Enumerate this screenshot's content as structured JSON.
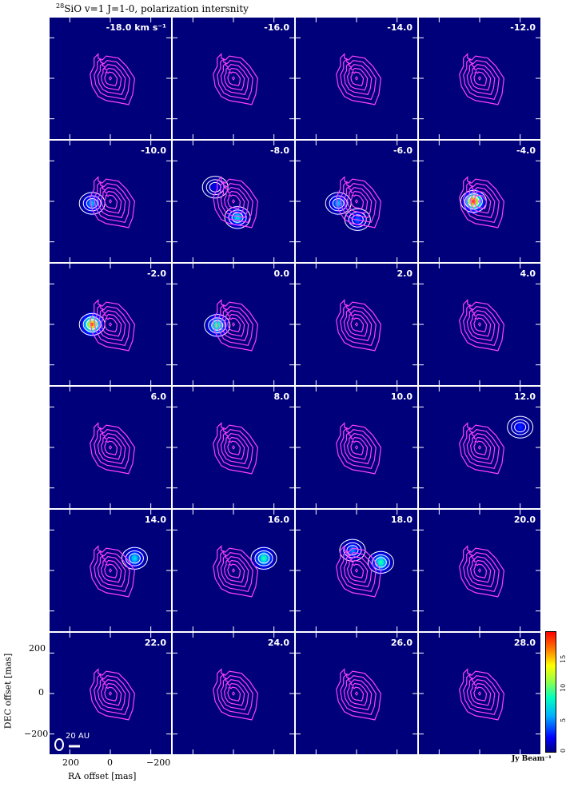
{
  "title_prefix": "28",
  "title_text": "SiO v=1 J=1-0, polarization intersnity",
  "ylabel": "DEC offset [mas]",
  "xlabel": "RA offset [mas]",
  "y_ticks": [
    "200",
    "0",
    "−200"
  ],
  "x_ticks": [
    "200",
    "0",
    "−200"
  ],
  "scale_bar_label": "20 AU",
  "colorbar": {
    "label": "Jy Beam⁻¹",
    "ticks": [
      "0",
      "5",
      "10",
      "15"
    ],
    "range": [
      0,
      19
    ]
  },
  "chart_data": {
    "type": "heatmap",
    "title": "28SiO v=1 J=1-0, polarization intersnity",
    "xlabel": "RA offset [mas]",
    "ylabel": "DEC offset [mas]",
    "xlim": [
      300,
      -300
    ],
    "ylim": [
      -300,
      300
    ],
    "velocity_unit": "km s⁻¹",
    "velocities": [
      "-18.0",
      "-16.0",
      "-14.0",
      "-12.0",
      "-10.0",
      "-8.0",
      "-6.0",
      "-4.0",
      "-2.0",
      "0.0",
      "2.0",
      "4.0",
      "6.0",
      "8.0",
      "10.0",
      "12.0",
      "14.0",
      "16.0",
      "18.0",
      "20.0",
      "22.0",
      "24.0",
      "26.0",
      "28.0"
    ],
    "first_label_suffix": " km s⁻¹",
    "colorbar_range": [
      0,
      19
    ],
    "emission_spots": {
      "-10.0": [
        {
          "x": 90,
          "y": -10,
          "peak": 6
        }
      ],
      "-8.0": [
        {
          "x": 90,
          "y": 70,
          "peak": 2
        },
        {
          "x": -20,
          "y": -80,
          "peak": 7
        }
      ],
      "-6.0": [
        {
          "x": 90,
          "y": -10,
          "peak": 6
        },
        {
          "x": -5,
          "y": -90,
          "peak": 4
        }
      ],
      "-4.0": [
        {
          "x": 30,
          "y": 0,
          "peak": 18
        }
      ],
      "-2.0": [
        {
          "x": 90,
          "y": 0,
          "peak": 17
        }
      ],
      "0.0": [
        {
          "x": 80,
          "y": -5,
          "peak": 10
        }
      ],
      "12.0": [
        {
          "x": -200,
          "y": 100,
          "peak": 3
        }
      ],
      "14.0": [
        {
          "x": -120,
          "y": 60,
          "peak": 7
        }
      ],
      "16.0": [
        {
          "x": -150,
          "y": 60,
          "peak": 9
        }
      ],
      "18.0": [
        {
          "x": 20,
          "y": 100,
          "peak": 5
        },
        {
          "x": -120,
          "y": 40,
          "peak": 9
        }
      ],
      "20.0": []
    }
  }
}
